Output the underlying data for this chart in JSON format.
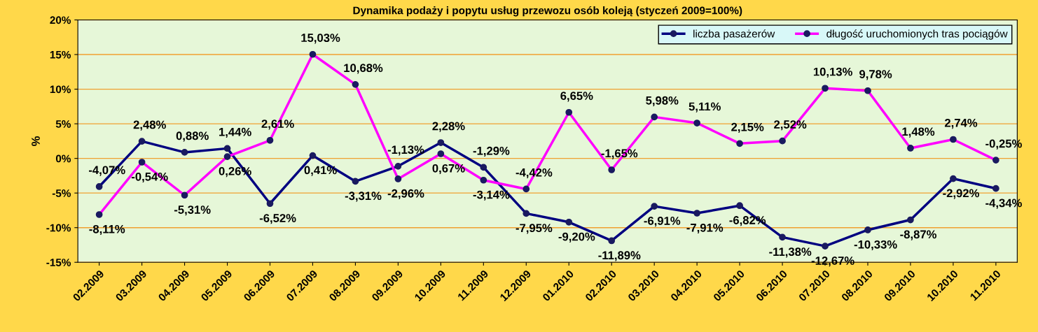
{
  "chart_data": {
    "type": "line",
    "title": "Dynamika podaży i popytu usług przewozu osób koleją (styczeń 2009=100%)",
    "ylabel": "%",
    "categories": [
      "02.2009",
      "03.2009",
      "04.2009",
      "05.2009",
      "06.2009",
      "07.2009",
      "08.2009",
      "09.2009",
      "10.2009",
      "11.2009",
      "12.2009",
      "01.2010",
      "02.2010",
      "03.2010",
      "04.2010",
      "05.2010",
      "06.2010",
      "07.2010",
      "08.2010",
      "09.2010",
      "10.2010",
      "11.2010"
    ],
    "series": [
      {
        "name": "liczba pasażerów",
        "color": "#000080",
        "values": [
          -4.07,
          2.48,
          0.88,
          1.44,
          -6.52,
          0.41,
          -3.31,
          -1.13,
          2.28,
          -1.29,
          -7.95,
          -9.2,
          -11.89,
          -6.91,
          -7.91,
          -6.82,
          -11.38,
          -12.67,
          -10.33,
          -8.87,
          -2.92,
          -4.34
        ],
        "value_labels": [
          "-4,07%",
          "2,48%",
          "0,88%",
          "1,44%",
          "-6,52%",
          "0,41%",
          "-3,31%",
          "-1,13%",
          "2,28%",
          "-1,29%",
          "-7,95%",
          "-9,20%",
          "-11,89%",
          "-6,91%",
          "-7,91%",
          "-6,82%",
          "-11,38%",
          "-12,67%",
          "-10,33%",
          "-8,87%",
          "-2,92%",
          "-4,34%"
        ]
      },
      {
        "name": "długość uruchomionych tras pociągów",
        "color": "#ff00ff",
        "values": [
          -8.11,
          -0.54,
          -5.31,
          0.26,
          2.61,
          15.03,
          10.68,
          -2.96,
          0.67,
          -3.14,
          -4.42,
          6.65,
          -1.65,
          5.98,
          5.11,
          2.15,
          2.52,
          10.13,
          9.78,
          1.48,
          2.74,
          -0.25
        ],
        "value_labels": [
          "-8,11%",
          "-0,54%",
          "-5,31%",
          "0,26%",
          "2,61%",
          "15,03%",
          "10,68%",
          "-2,96%",
          "0,67%",
          "-3,14%",
          "-4,42%",
          "6,65%",
          "-1,65%",
          "5,98%",
          "5,11%",
          "2,15%",
          "2,52%",
          "10,13%",
          "9,78%",
          "1,48%",
          "2,74%",
          "-0,25%"
        ]
      }
    ],
    "ylim": [
      -15,
      20
    ],
    "yticks": [
      {
        "value": -15,
        "label": "-15%"
      },
      {
        "value": -10,
        "label": "-10%"
      },
      {
        "value": -5,
        "label": "-5%"
      },
      {
        "value": 0,
        "label": "0%"
      },
      {
        "value": 5,
        "label": "5%"
      },
      {
        "value": 10,
        "label": "10%"
      },
      {
        "value": 15,
        "label": "15%"
      },
      {
        "value": 20,
        "label": "20%"
      }
    ],
    "grid": "y",
    "legend": "top right",
    "marker": "circle",
    "line_style": "solid"
  }
}
